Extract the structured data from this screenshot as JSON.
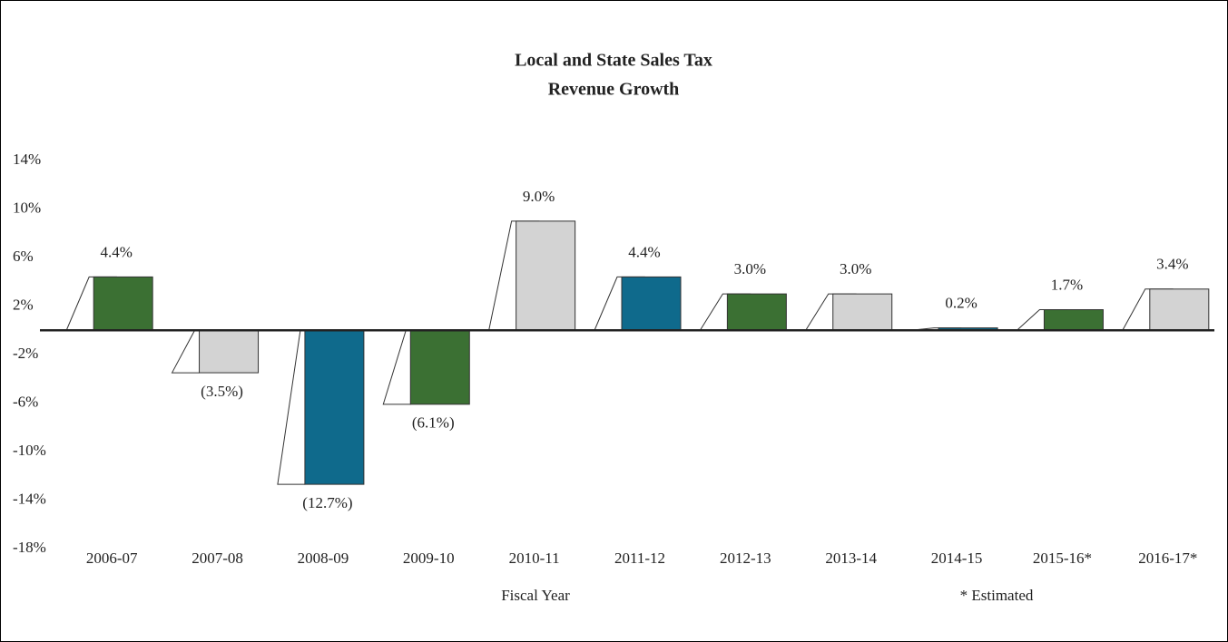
{
  "chart_data": {
    "type": "bar",
    "title": [
      "Local and State Sales Tax",
      "Revenue Growth"
    ],
    "x_label": "Fiscal Year",
    "note": "* Estimated",
    "categories": [
      "2006-07",
      "2007-08",
      "2008-09",
      "2009-10",
      "2010-11",
      "2011-12",
      "2012-13",
      "2013-14",
      "2014-15",
      "2015-16*",
      "2016-17*"
    ],
    "values": [
      4.4,
      -3.5,
      -12.7,
      -6.1,
      9.0,
      4.4,
      3.0,
      3.0,
      0.2,
      1.7,
      3.4
    ],
    "value_labels": [
      "4.4%",
      "(3.5%)",
      "(12.7%)",
      "(6.1%)",
      "9.0%",
      "4.4%",
      "3.0%",
      "3.0%",
      "0.2%",
      "1.7%",
      "3.4%"
    ],
    "colors": [
      "#3b7033",
      "#d3d3d3",
      "#0f6a8c",
      "#3b7033",
      "#d3d3d3",
      "#0f6a8c",
      "#3b7033",
      "#d3d3d3",
      "#0f6a8c",
      "#3b7033",
      "#d3d3d3"
    ],
    "ylim": [
      -18,
      14
    ],
    "yticks": [
      {
        "value": 14,
        "label": "14%"
      },
      {
        "value": 10,
        "label": "10%"
      },
      {
        "value": 6,
        "label": "6%"
      },
      {
        "value": 2,
        "label": "2%"
      },
      {
        "value": -2,
        "label": "-2%"
      },
      {
        "value": -6,
        "label": "-6%"
      },
      {
        "value": -10,
        "label": "-10%"
      },
      {
        "value": -14,
        "label": "-14%"
      },
      {
        "value": -18,
        "label": "-18%"
      }
    ],
    "grid": false
  }
}
